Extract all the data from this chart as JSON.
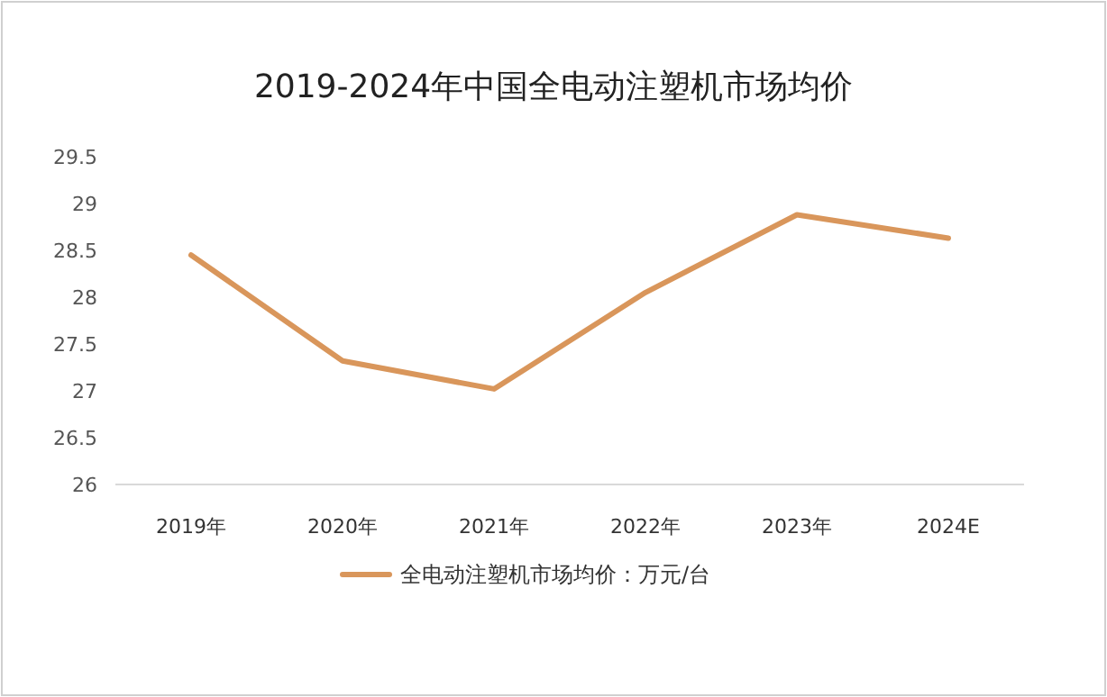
{
  "chart_data": {
    "type": "line",
    "title": "2019-2024年中国全电动注塑机市场均价",
    "categories": [
      "2019年",
      "2020年",
      "2021年",
      "2022年",
      "2023年",
      "2024E"
    ],
    "series": [
      {
        "name": "全电动注塑机市场均价：万元/台",
        "color": "#d9965b",
        "values": [
          28.45,
          27.32,
          27.02,
          28.05,
          28.88,
          28.63
        ]
      }
    ],
    "ylim": [
      26,
      29.5
    ],
    "yticks": [
      26,
      26.5,
      27,
      27.5,
      28,
      28.5,
      29,
      29.5
    ],
    "legend": "bottom"
  }
}
